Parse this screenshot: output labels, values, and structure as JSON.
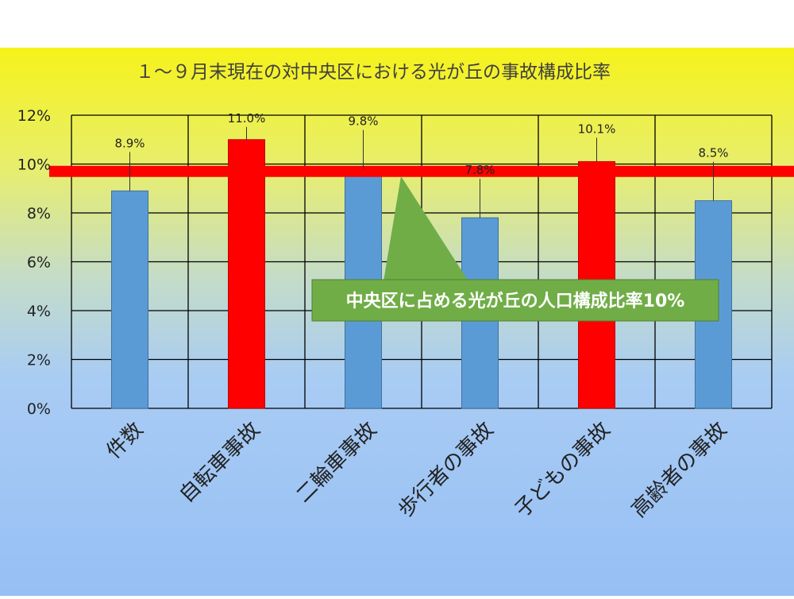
{
  "colors": {
    "background_top": "#f6f21a",
    "background_bottom": "#96bff5",
    "bar_blue": "#5b9bd5",
    "bar_red": "#ff0000",
    "reference_line": "#ff0000",
    "callout_fill": "#70ad47",
    "callout_text": "#ffffff",
    "grid": "#000000"
  },
  "chart_data": {
    "type": "bar",
    "title": "１～９月末現在の対中央区における光が丘の事故構成比率",
    "categories": [
      "件数",
      "自転車事故",
      "二輪車事故",
      "歩行者の事故",
      "子どもの事故",
      "高齢者の事故"
    ],
    "values": [
      8.9,
      11.0,
      9.8,
      7.8,
      10.1,
      8.5
    ],
    "data_labels": [
      "8.9%",
      "11.0%",
      "9.8%",
      "7.8%",
      "10.1%",
      "8.5%"
    ],
    "bar_colors": [
      "#5b9bd5",
      "#ff0000",
      "#5b9bd5",
      "#5b9bd5",
      "#ff0000",
      "#5b9bd5"
    ],
    "ylim": [
      0,
      12
    ],
    "y_ticks": [
      0,
      2,
      4,
      6,
      8,
      10,
      12
    ],
    "y_tick_labels": [
      "0%",
      "2%",
      "4%",
      "6%",
      "8%",
      "10%",
      "12%"
    ],
    "grid": true,
    "reference_line": {
      "value": 9.7,
      "color": "#ff0000"
    },
    "callout": {
      "text": "中央区に占める光が丘の人口構成比率10%",
      "points_to_value": 9.7
    }
  }
}
